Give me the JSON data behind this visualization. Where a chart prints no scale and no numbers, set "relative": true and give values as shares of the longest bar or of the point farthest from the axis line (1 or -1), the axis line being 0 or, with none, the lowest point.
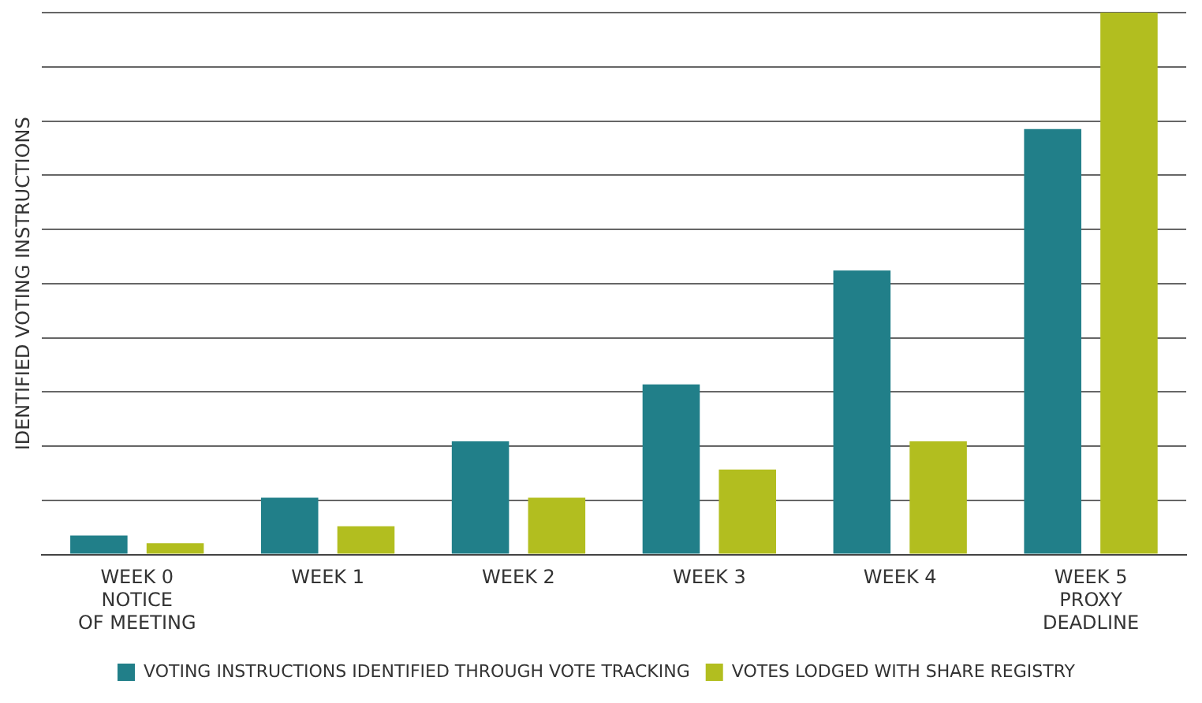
{
  "chart_data": {
    "type": "bar",
    "relative": true,
    "ylabel": "IDENTIFIED VOTING INSTRUCTIONS",
    "categories": [
      "WEEK 0\nNOTICE\nOF MEETING",
      "WEEK 1",
      "WEEK 2",
      "WEEK 3",
      "WEEK 4",
      "WEEK 5\nPROXY\nDEADLINE"
    ],
    "series": [
      {
        "name": "VOTING INSTRUCTIONS IDENTIFIED THROUGH VOTE TRACKING",
        "color": "#217f89",
        "values": [
          0.035,
          0.105,
          0.209,
          0.314,
          0.524,
          0.785
        ]
      },
      {
        "name": "VOTES LODGED WITH SHARE REGISTRY",
        "color": "#b2be1f",
        "values": [
          0.021,
          0.052,
          0.105,
          0.157,
          0.209,
          1
        ]
      }
    ],
    "grid": "y",
    "legend": "bottom"
  }
}
